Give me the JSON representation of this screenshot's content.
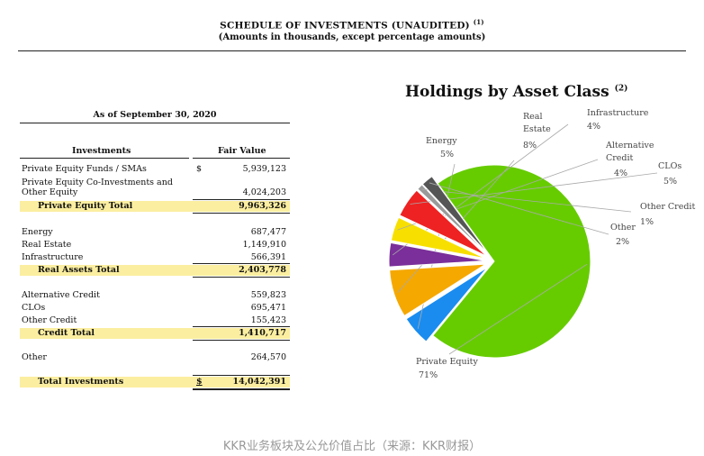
{
  "header": {
    "title": "SCHEDULE OF INVESTMENTS (UNAUDITED)",
    "title_note": "(1)",
    "subtitle": "(Amounts in thousands, except percentage amounts)"
  },
  "table": {
    "as_of": "As of September 30, 2020",
    "col_investments": "Investments",
    "col_fair_value": "Fair Value",
    "rows": [
      {
        "label": "Private Equity Funds / SMAs",
        "currency": "$",
        "value": "5,939,123"
      },
      {
        "label": "Private Equity Co-Investments and",
        "value": ""
      },
      {
        "label": "Other Equity",
        "value": "4,024,203"
      },
      {
        "label": "Private Equity Total",
        "value": "9,963,326"
      },
      {
        "label": "Energy",
        "value": "687,477"
      },
      {
        "label": "Real Estate",
        "value": "1,149,910"
      },
      {
        "label": "Infrastructure",
        "value": "566,391"
      },
      {
        "label": "Real Assets Total",
        "value": "2,403,778"
      },
      {
        "label": "Alternative Credit",
        "value": "559,823"
      },
      {
        "label": "CLOs",
        "value": "695,471"
      },
      {
        "label": "Other Credit",
        "value": "155,423"
      },
      {
        "label": "Credit Total",
        "value": "1,410,717"
      },
      {
        "label": "Other",
        "value": "264,570"
      },
      {
        "label": "Total Investments",
        "currency": "$",
        "value": "14,042,391"
      }
    ]
  },
  "chart_data": {
    "type": "pie",
    "title": "Holdings by Asset Class",
    "title_note": "(2)",
    "slices": [
      {
        "label": "Private Equity",
        "line2": "",
        "pct": "71%",
        "value": 71,
        "color": "#66cc00"
      },
      {
        "label": "Energy",
        "line2": "",
        "pct": "5%",
        "value": 5,
        "color": "#1a8cf0"
      },
      {
        "label": "Real",
        "line2": "Estate",
        "pct": "8%",
        "value": 8,
        "color": "#f5a800"
      },
      {
        "label": "Infrastructure",
        "line2": "",
        "pct": "4%",
        "value": 4,
        "color": "#7a2f9a"
      },
      {
        "label": "Alternative",
        "line2": "Credit",
        "pct": "4%",
        "value": 4,
        "color": "#f7e000"
      },
      {
        "label": "CLOs",
        "line2": "",
        "pct": "5%",
        "value": 5,
        "color": "#ee2222"
      },
      {
        "label": "Other Credit",
        "line2": "",
        "pct": "1%",
        "value": 1,
        "color": "#9a9a9a"
      },
      {
        "label": "Other",
        "line2": "",
        "pct": "2%",
        "value": 2,
        "color": "#555555"
      }
    ]
  },
  "caption": "KKR业务板块及公允价值占比（来源：KKR财报）"
}
